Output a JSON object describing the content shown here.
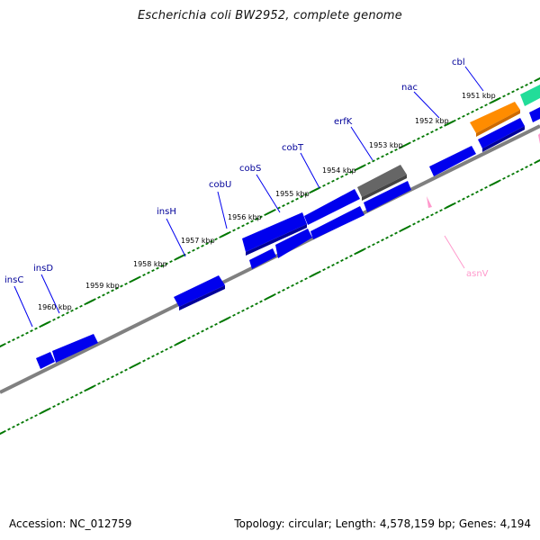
{
  "title": "Escherichia coli BW2952, complete genome",
  "footer": {
    "accession": "Accession: NC_012759",
    "summary": "Topology: circular; Length: 4,578,159 bp; Genes: 4,194"
  },
  "colors": {
    "forward_gene": "#0000ee",
    "other_gene": "#888888",
    "highlight_orange": "#ff8c00",
    "highlight_green": "#22dd99",
    "trna": "#ff99cc",
    "tick": "#007700",
    "backbone": "#808080",
    "label": "#000099"
  },
  "scale_labels": [
    "1951 kbp",
    "1952 kbp",
    "1953 kbp",
    "1954 kbp",
    "1955 kbp",
    "1956 kbp",
    "1957 kbp",
    "1958 kbp",
    "1959 kbp",
    "1960 kbp"
  ],
  "gene_labels": [
    "cbl",
    "nac",
    "erfK",
    "cobT",
    "cobS",
    "cobU",
    "insH",
    "insD",
    "insC"
  ],
  "trna_label": "asnV"
}
